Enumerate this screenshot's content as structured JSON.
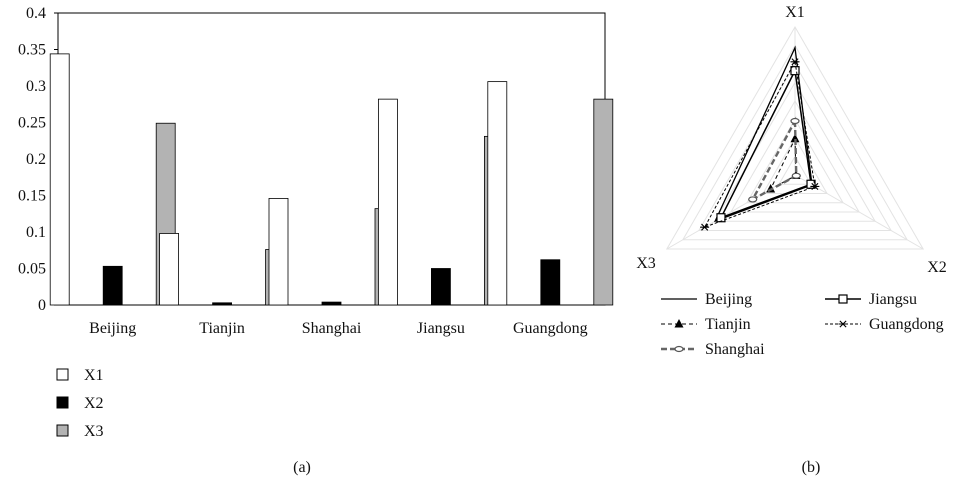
{
  "panels": {
    "a_label": "(a)",
    "b_label": "(b)"
  },
  "chart_data": [
    {
      "type": "bar",
      "title": "",
      "xlabel": "",
      "ylabel": "",
      "ylim": [
        0,
        0.4
      ],
      "yticks": [
        0,
        0.05,
        0.1,
        0.15,
        0.2,
        0.25,
        0.3,
        0.35,
        0.4
      ],
      "ytick_labels": [
        "0",
        "0.05",
        "0.1",
        "0.15",
        "0.2",
        "0.25",
        "0.3",
        "0.35",
        "0.4"
      ],
      "categories": [
        "Beijing",
        "Tianjin",
        "Shanghai",
        "Jiangsu",
        "Guangdong"
      ],
      "grid": false,
      "legend_position": "bottom-left",
      "series": [
        {
          "name": "X1",
          "color": "#ffffff",
          "values": [
            0.344,
            0.098,
            0.146,
            0.282,
            0.306
          ]
        },
        {
          "name": "X2",
          "color": "#000000",
          "values": [
            0.053,
            0.003,
            0.004,
            0.05,
            0.062
          ]
        },
        {
          "name": "X3",
          "color": "#b3b3b3",
          "values": [
            0.249,
            0.076,
            0.132,
            0.231,
            0.282
          ]
        }
      ]
    },
    {
      "type": "radar",
      "title": "",
      "axes": [
        "X1",
        "X2",
        "X3"
      ],
      "range": [
        0,
        0.4
      ],
      "grid": true,
      "legend_position": "bottom",
      "series": [
        {
          "name": "Beijing",
          "values": [
            0.344,
            0.053,
            0.249
          ]
        },
        {
          "name": "Tianjin",
          "values": [
            0.098,
            0.003,
            0.076
          ]
        },
        {
          "name": "Shanghai",
          "values": [
            0.146,
            0.004,
            0.132
          ]
        },
        {
          "name": "Jiangsu",
          "values": [
            0.282,
            0.05,
            0.231
          ]
        },
        {
          "name": "Guangdong",
          "values": [
            0.306,
            0.062,
            0.282
          ]
        }
      ]
    }
  ]
}
